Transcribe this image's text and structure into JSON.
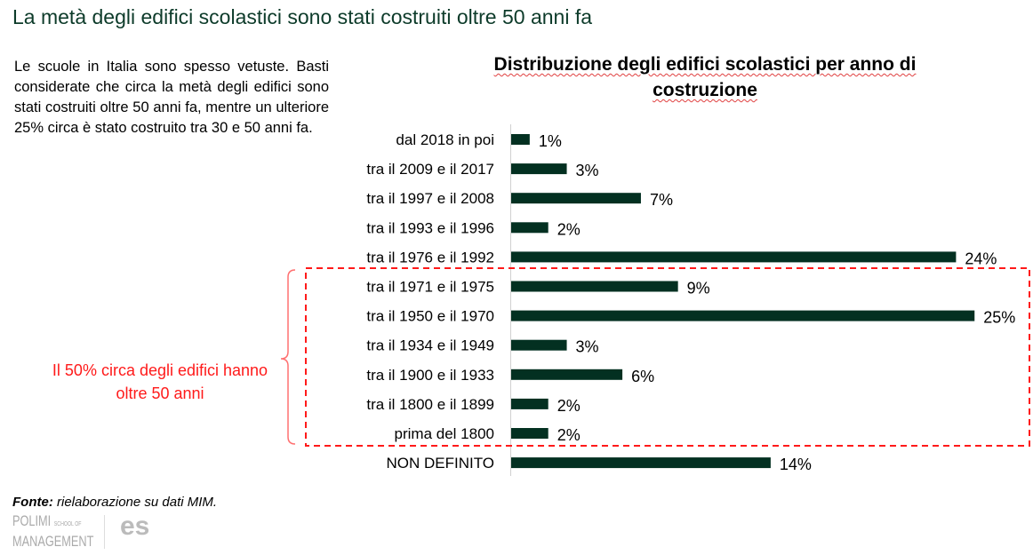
{
  "header": {
    "title": "La metà degli edifici scolastici sono stati costruiti oltre 50 anni fa"
  },
  "intro": "Le scuole in Italia sono spesso vetuste. Basti considerate che circa la metà degli edifici sono stati costruiti oltre 50 anni fa, mentre un ulteriore 25% circa è stato costruito tra 30 e 50 anni fa.",
  "annotation": {
    "text": "Il 50% circa degli edifici hanno oltre 50 anni",
    "color": "#ff1a1a"
  },
  "source": {
    "label": "Fonte:",
    "text": " rielaborazione su dati MIM."
  },
  "logos": {
    "polimi_line1": "POLIMI",
    "polimi_small": "SCHOOL OF",
    "polimi_line2": "MANAGEMENT",
    "es": "es"
  },
  "chart_data": {
    "type": "bar",
    "orientation": "horizontal",
    "title": "Distribuzione degli edifici scolastici per anno di costruzione",
    "categories": [
      "dal 2018 in poi",
      "tra il 2009 e il 2017",
      "tra il 1997 e il 2008",
      "tra il 1993 e il 1996",
      "tra il 1976 e il 1992",
      "tra il 1971 e il 1975",
      "tra il 1950 e il 1970",
      "tra il 1934 e il 1949",
      "tra il 1900 e il 1933",
      "tra il 1800 e il 1899",
      "prima del 1800",
      "NON DEFINITO"
    ],
    "values": [
      1,
      3,
      7,
      2,
      24,
      9,
      25,
      3,
      6,
      2,
      2,
      14
    ],
    "labels": [
      "1%",
      "3%",
      "7%",
      "2%",
      "24%",
      "9%",
      "25%",
      "3%",
      "6%",
      "2%",
      "2%",
      "14%"
    ],
    "unit": "%",
    "bar_color": "#033021",
    "highlighted_range": [
      "tra il 1971 e il 1975",
      "prima del 1800"
    ],
    "grid": false
  }
}
